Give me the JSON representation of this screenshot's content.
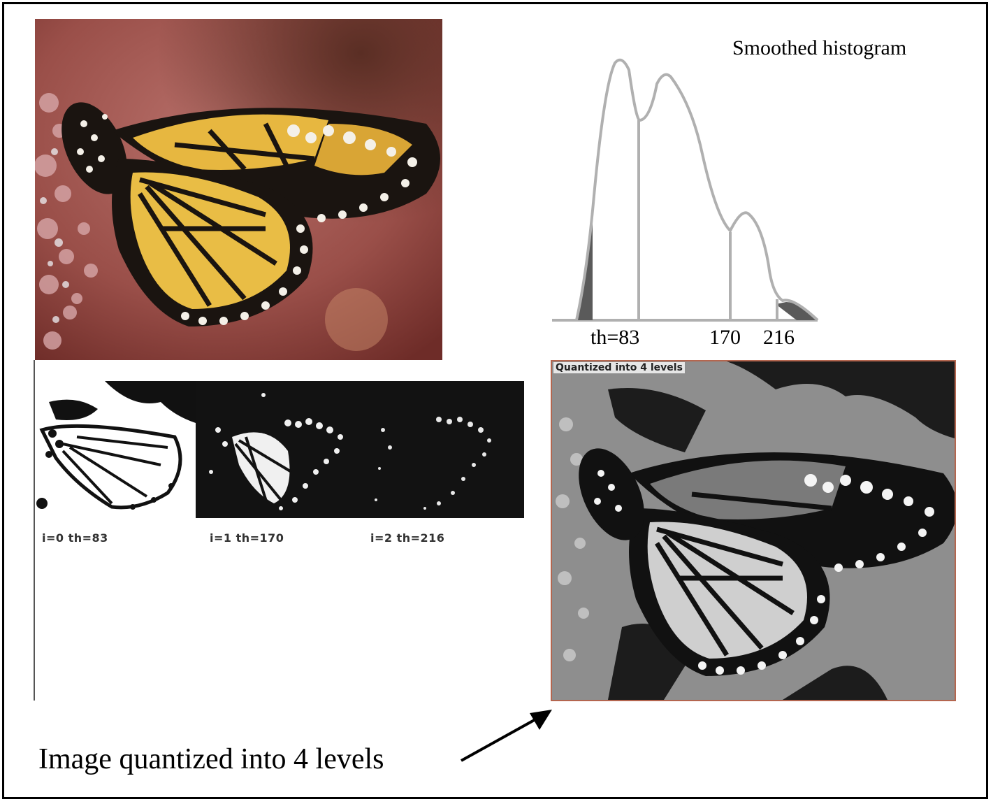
{
  "histogram": {
    "title": "Smoothed histogram",
    "thresholds": [
      {
        "label": "th=83"
      },
      {
        "label": "170"
      },
      {
        "label": "216"
      }
    ]
  },
  "binary_images": [
    {
      "label": "i=0 th=83"
    },
    {
      "label": "i=1 th=170"
    },
    {
      "label": "i=2 th=216"
    }
  ],
  "quantized": {
    "tag": "Quantized into 4 levels"
  },
  "caption": "Image quantized into 4 levels",
  "colors": {
    "photo_background": "#a8605c",
    "wing_yellow": "#e7b740",
    "wing_black": "#1a1410",
    "histogram_line": "#b0b0b0",
    "histogram_tail": "#5a5a5a",
    "quantized_border": "#b4664f"
  }
}
